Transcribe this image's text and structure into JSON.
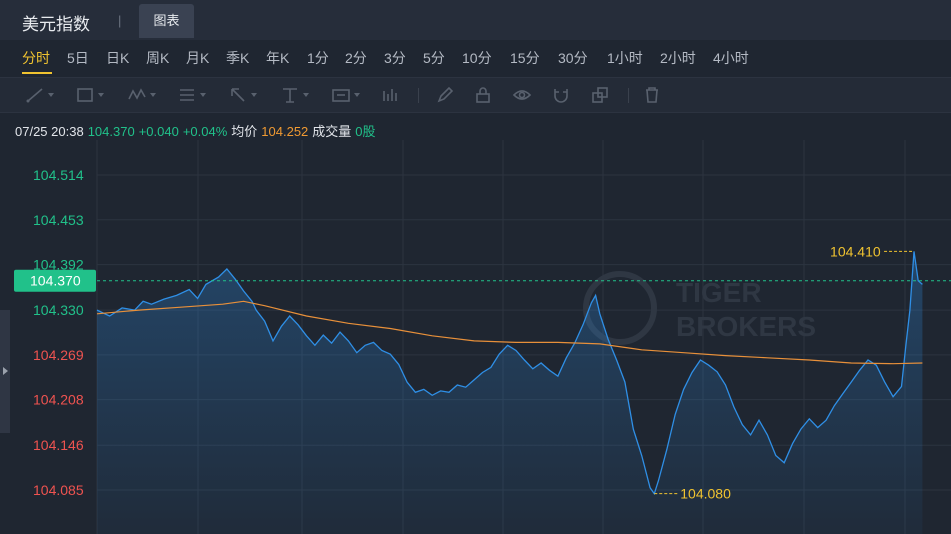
{
  "app_title": "美元指数",
  "tab_label": "图表",
  "periods": [
    "分时",
    "5日",
    "日K",
    "周K",
    "月K",
    "季K",
    "年K",
    "1分",
    "2分",
    "3分",
    "5分",
    "10分",
    "15分",
    "30分",
    "1小时",
    "2小时",
    "4小时"
  ],
  "active_period": "分时",
  "toolbar_icons": [
    "line-tool-icon",
    "rectangle-tool-icon",
    "wave-tool-icon",
    "channel-tool-icon",
    "arrow-tool-icon",
    "text-tool-icon",
    "label-tool-icon",
    "bar-mark-icon",
    "pen-icon",
    "lock-icon",
    "eye-icon",
    "magnet-icon",
    "layers-icon",
    "trash-icon"
  ],
  "info": {
    "datetime": "07/25 20:38",
    "price": "104.370",
    "change": "+0.040",
    "change_pct": "+0.04%",
    "avg_label": "均价",
    "avg_value": "104.252",
    "volume_label": "成交量",
    "volume_value": "0股"
  },
  "colors": {
    "price_line": "#2f8fe6",
    "avg_line": "#e8903a",
    "up": "#21c18a",
    "down": "#ef5350",
    "highlight": "#f0c330"
  },
  "watermark": "TIGER BROKERS",
  "chart_data": {
    "type": "line",
    "y_ticks": [
      "104.514",
      "104.453",
      "104.392",
      "104.330",
      "104.269",
      "104.208",
      "104.146",
      "104.085"
    ],
    "y_tick_values": [
      104.514,
      104.453,
      104.392,
      104.33,
      104.269,
      104.208,
      104.146,
      104.085
    ],
    "prev_close": 104.33,
    "current_price_label": "104.370",
    "current_price": 104.37,
    "high_label": "104.410",
    "low_label": "104.080",
    "ylim": [
      104.06,
      104.56
    ],
    "xlim": [
      0,
      100
    ],
    "series": [
      {
        "values": [
          [
            0,
            104.33
          ],
          [
            1.5,
            104.322
          ],
          [
            3,
            104.333
          ],
          [
            4.5,
            104.33
          ],
          [
            5.5,
            104.342
          ],
          [
            6.5,
            104.338
          ],
          [
            8,
            104.345
          ],
          [
            9.5,
            104.35
          ],
          [
            11,
            104.358
          ],
          [
            12,
            104.346
          ],
          [
            13,
            104.365
          ],
          [
            14.5,
            104.375
          ],
          [
            15.5,
            104.386
          ],
          [
            16.5,
            104.372
          ],
          [
            17.5,
            104.356
          ],
          [
            18.5,
            104.342
          ],
          [
            19,
            104.33
          ],
          [
            20,
            104.315
          ],
          [
            21,
            104.288
          ],
          [
            22,
            104.308
          ],
          [
            23,
            104.322
          ],
          [
            24,
            104.31
          ],
          [
            25,
            104.295
          ],
          [
            26,
            104.282
          ],
          [
            27,
            104.296
          ],
          [
            28,
            104.285
          ],
          [
            29,
            104.3
          ],
          [
            30,
            104.288
          ],
          [
            31,
            104.272
          ],
          [
            32,
            104.282
          ],
          [
            33,
            104.286
          ],
          [
            34,
            104.275
          ],
          [
            35,
            104.27
          ],
          [
            36,
            104.256
          ],
          [
            37,
            104.232
          ],
          [
            38,
            104.218
          ],
          [
            39,
            104.222
          ],
          [
            40,
            104.214
          ],
          [
            41,
            104.22
          ],
          [
            42,
            104.218
          ],
          [
            43,
            104.228
          ],
          [
            44,
            104.225
          ],
          [
            45,
            104.235
          ],
          [
            46,
            104.245
          ],
          [
            47,
            104.252
          ],
          [
            48,
            104.27
          ],
          [
            49,
            104.282
          ],
          [
            50,
            104.275
          ],
          [
            51,
            104.262
          ],
          [
            52,
            104.25
          ],
          [
            53,
            104.258
          ],
          [
            54,
            104.248
          ],
          [
            55,
            104.24
          ],
          [
            56,
            104.265
          ],
          [
            57,
            104.285
          ],
          [
            58,
            104.31
          ],
          [
            59,
            104.34
          ],
          [
            59.5,
            104.35
          ],
          [
            60,
            104.325
          ],
          [
            61,
            104.29
          ],
          [
            62,
            104.262
          ],
          [
            63,
            104.232
          ],
          [
            64,
            104.168
          ],
          [
            65,
            104.132
          ],
          [
            66,
            104.088
          ],
          [
            66.5,
            104.08
          ],
          [
            67,
            104.098
          ],
          [
            68,
            104.14
          ],
          [
            69,
            104.188
          ],
          [
            70,
            104.222
          ],
          [
            71,
            104.245
          ],
          [
            72,
            104.262
          ],
          [
            73,
            104.255
          ],
          [
            74,
            104.246
          ],
          [
            75,
            104.228
          ],
          [
            76,
            104.198
          ],
          [
            77,
            104.174
          ],
          [
            78,
            104.16
          ],
          [
            79,
            104.18
          ],
          [
            80,
            104.16
          ],
          [
            81,
            104.132
          ],
          [
            82,
            104.122
          ],
          [
            83,
            104.148
          ],
          [
            84,
            104.168
          ],
          [
            85,
            104.182
          ],
          [
            86,
            104.17
          ],
          [
            87,
            104.18
          ],
          [
            88,
            104.2
          ],
          [
            89,
            104.216
          ],
          [
            90,
            104.232
          ],
          [
            91,
            104.248
          ],
          [
            92,
            104.262
          ],
          [
            93,
            104.255
          ],
          [
            94,
            104.232
          ],
          [
            95,
            104.212
          ],
          [
            96,
            104.226
          ],
          [
            96.5,
            104.28
          ],
          [
            97,
            104.33
          ],
          [
            97.5,
            104.41
          ],
          [
            98,
            104.37
          ],
          [
            98.5,
            104.365
          ]
        ]
      },
      {
        "values": [
          [
            0,
            104.325
          ],
          [
            5,
            104.33
          ],
          [
            10,
            104.334
          ],
          [
            15,
            104.338
          ],
          [
            17.5,
            104.342
          ],
          [
            20,
            104.336
          ],
          [
            25,
            104.322
          ],
          [
            30,
            104.312
          ],
          [
            35,
            104.305
          ],
          [
            40,
            104.295
          ],
          [
            45,
            104.288
          ],
          [
            50,
            104.286
          ],
          [
            55,
            104.286
          ],
          [
            60,
            104.284
          ],
          [
            65,
            104.276
          ],
          [
            70,
            104.272
          ],
          [
            75,
            104.268
          ],
          [
            80,
            104.265
          ],
          [
            85,
            104.262
          ],
          [
            90,
            104.258
          ],
          [
            95,
            104.257
          ],
          [
            98.5,
            104.258
          ]
        ]
      }
    ]
  }
}
